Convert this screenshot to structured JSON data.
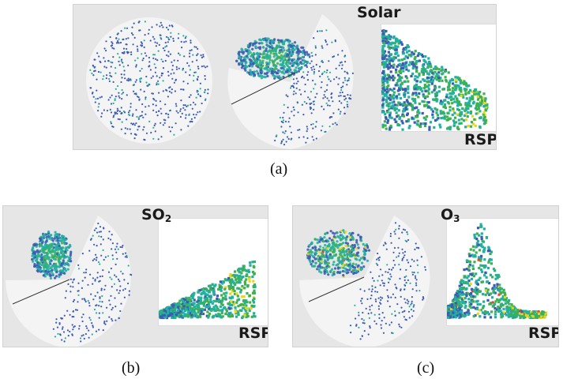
{
  "panels": {
    "a": {
      "caption": "(a)",
      "y_axis_label": "Solar",
      "x_axis_label": "RSP"
    },
    "b": {
      "caption": "(b)",
      "y_axis_label_main": "SO",
      "y_axis_label_sub": "2",
      "x_axis_label": "RSP"
    },
    "c": {
      "caption": "(c)",
      "y_axis_label_main": "O",
      "y_axis_label_sub": "3",
      "x_axis_label": "RSP"
    }
  },
  "colors": {
    "panel_bg": "#e6e6e6",
    "disk": "#f4f4f4",
    "low": "#3b5bb5",
    "mid": "#21b1a0",
    "green": "#3fb04a",
    "yellow": "#e8d51e",
    "high": "#e8452a"
  }
}
